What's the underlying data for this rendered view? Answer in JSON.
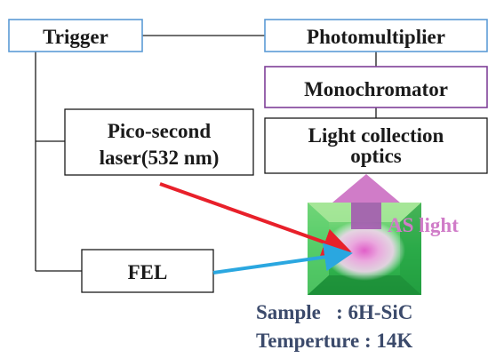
{
  "boxes": {
    "trigger": "Trigger",
    "photomultiplier": "Photomultiplier",
    "monochromator": "Monochromator",
    "light_collection_line1": "Light collection",
    "light_collection_line2": "optics",
    "laser_line1": "Pico-second",
    "laser_line2": "laser(532 nm)",
    "fel": "FEL"
  },
  "labels": {
    "as_light": "AS light",
    "sample": "Sample   : 6H-SiC",
    "temperature": "Temperture : 14K"
  },
  "colors": {
    "trigger_border": "#5b9bd5",
    "photomultiplier_border": "#5b9bd5",
    "monochromator_border": "#7f3f98",
    "box_border_dark": "#1a1a1a",
    "laser_beam": "#e8202a",
    "fel_beam": "#2aa7e0",
    "sample_green": "#2dbe4e",
    "as_light": "#d07cc8",
    "info_text": "#3b4a6b"
  }
}
